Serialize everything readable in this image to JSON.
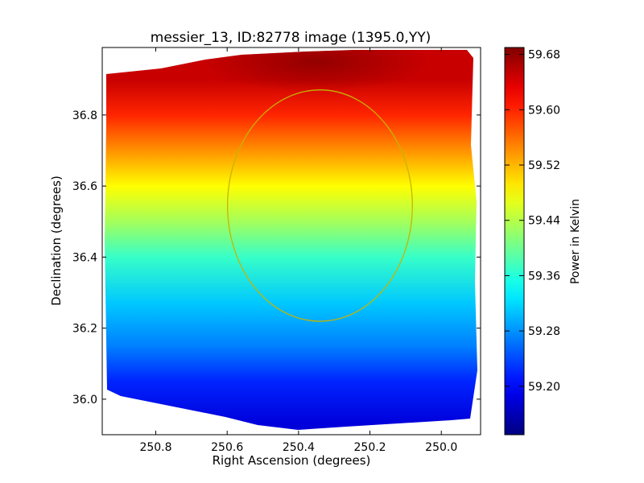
{
  "chart_data": {
    "type": "heatmap",
    "title": "messier_13, ID:82778 image (1395.0,YY)",
    "xlabel": "Right Ascension (degrees)",
    "ylabel": "Declination (degrees)",
    "x_axis_inverted": true,
    "xlim": [
      250.95,
      249.89
    ],
    "ylim": [
      35.9,
      36.99
    ],
    "xticks": [
      {
        "value": 250.8,
        "label": "250.8"
      },
      {
        "value": 250.6,
        "label": "250.6"
      },
      {
        "value": 250.4,
        "label": "250.4"
      },
      {
        "value": 250.2,
        "label": "250.2"
      },
      {
        "value": 250.0,
        "label": "250.0"
      }
    ],
    "yticks": [
      {
        "value": 36.0,
        "label": "36.0"
      },
      {
        "value": 36.2,
        "label": "36.2"
      },
      {
        "value": 36.4,
        "label": "36.4"
      },
      {
        "value": 36.6,
        "label": "36.6"
      },
      {
        "value": 36.8,
        "label": "36.8"
      }
    ],
    "colorbar": {
      "label": "Power in Kelvin",
      "colormap": "jet",
      "range": [
        59.13,
        59.69
      ],
      "ticks": [
        {
          "value": 59.2,
          "label": "59.20"
        },
        {
          "value": 59.28,
          "label": "59.28"
        },
        {
          "value": 59.36,
          "label": "59.36"
        },
        {
          "value": 59.44,
          "label": "59.44"
        },
        {
          "value": 59.52,
          "label": "59.52"
        },
        {
          "value": 59.6,
          "label": "59.60"
        },
        {
          "value": 59.68,
          "label": "59.68"
        }
      ]
    },
    "map_value_by_dec": [
      {
        "dec": 35.93,
        "value": 59.18
      },
      {
        "dec": 36.05,
        "value": 59.22
      },
      {
        "dec": 36.15,
        "value": 59.27
      },
      {
        "dec": 36.27,
        "value": 59.31
      },
      {
        "dec": 36.4,
        "value": 59.37
      },
      {
        "dec": 36.5,
        "value": 59.43
      },
      {
        "dec": 36.6,
        "value": 59.48
      },
      {
        "dec": 36.7,
        "value": 59.54
      },
      {
        "dec": 36.8,
        "value": 59.6
      },
      {
        "dec": 36.9,
        "value": 59.65
      }
    ],
    "hotspot": {
      "ra": 250.35,
      "dec": 36.95,
      "value": 59.69
    },
    "circle": {
      "center_ra": 250.34,
      "center_dec": 36.545,
      "radius_deg": 0.37,
      "color": "#c8b400"
    },
    "grid": false
  }
}
